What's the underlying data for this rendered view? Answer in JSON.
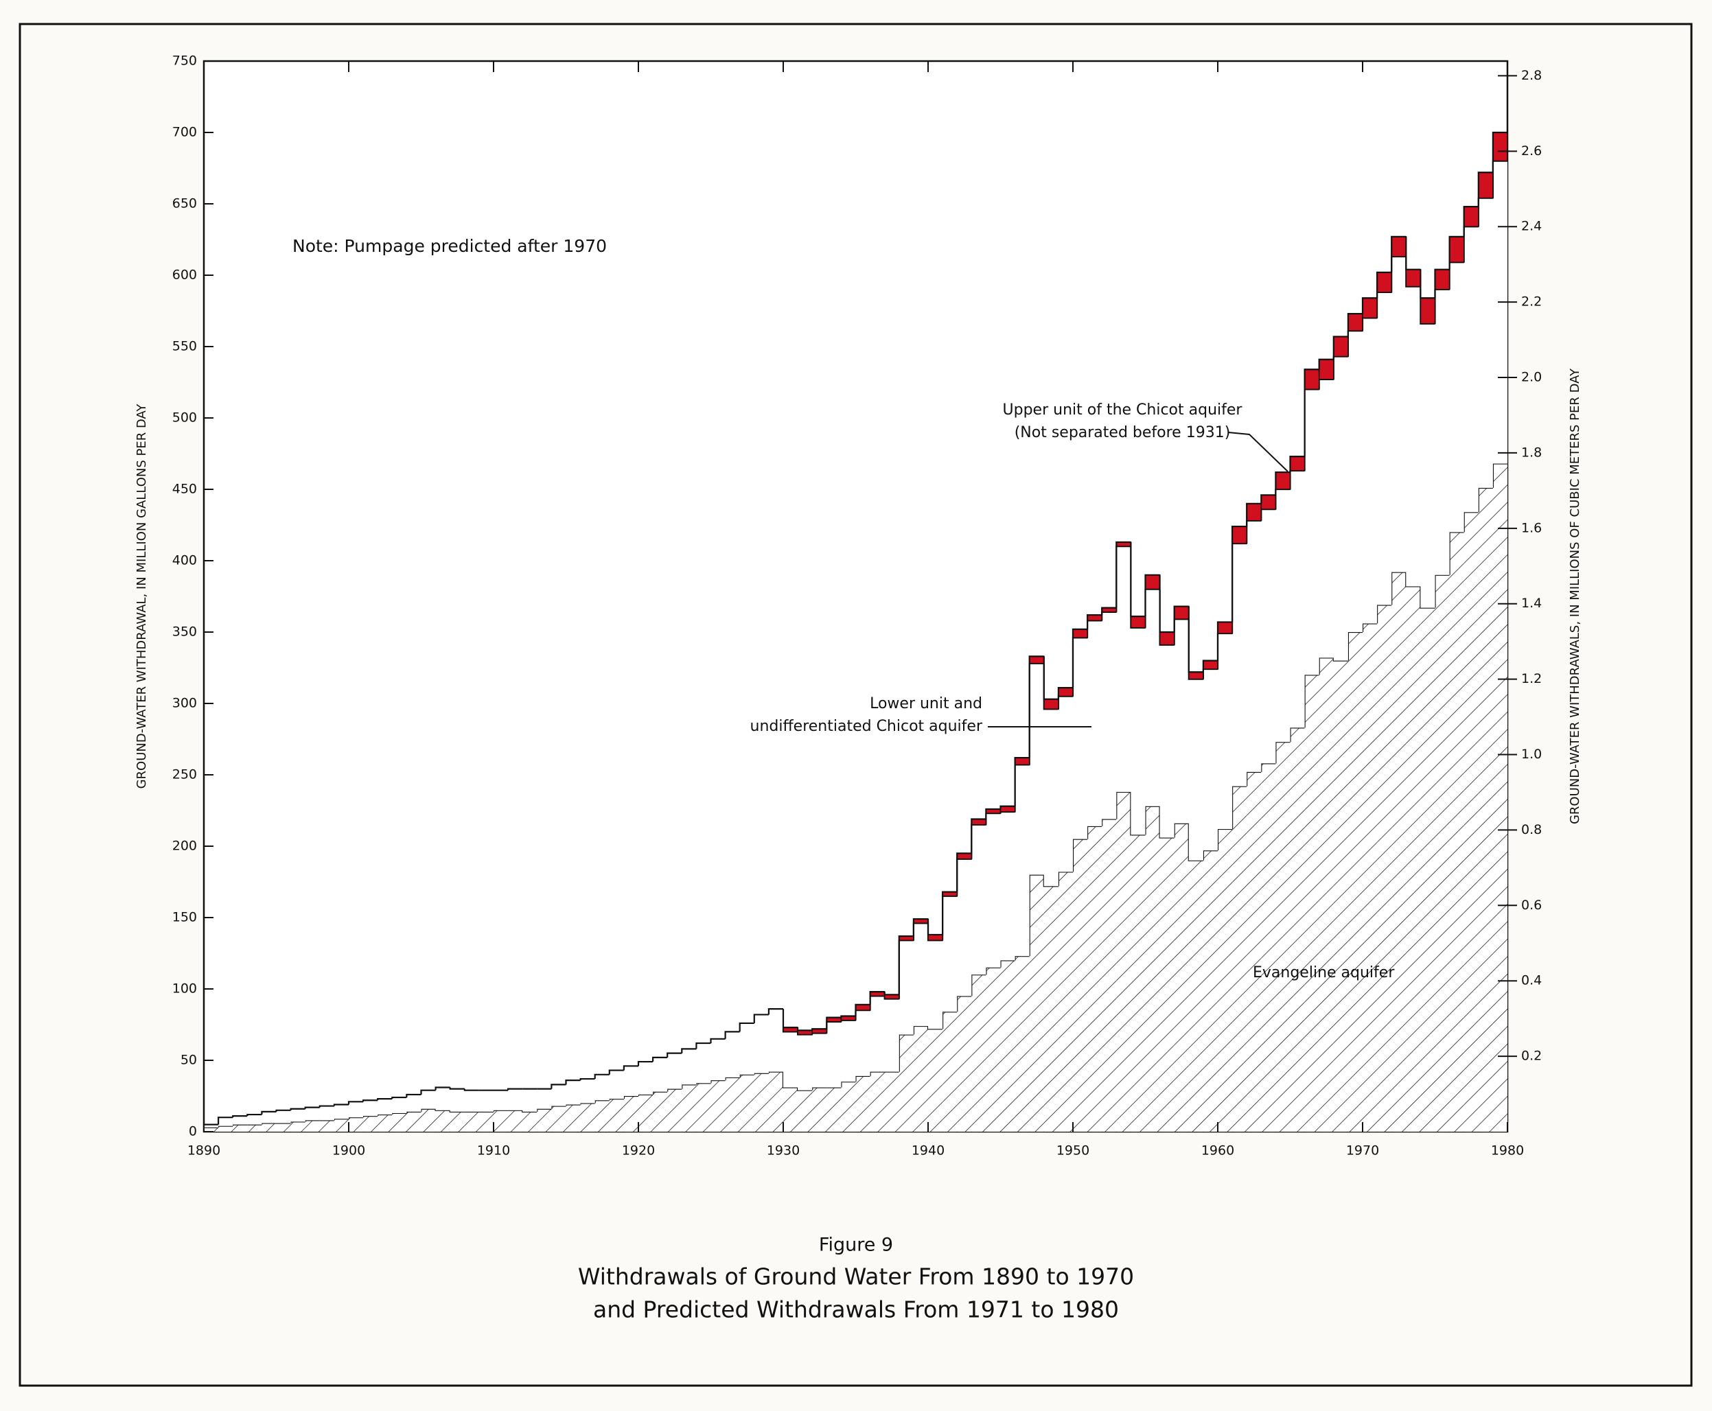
{
  "chart_data": {
    "type": "stacked-step-area",
    "figure_label": "Figure 9",
    "title": [
      "Withdrawals of Ground Water From 1890 to 1970",
      "and Predicted Withdrawals From 1971 to 1980"
    ],
    "note": "Note: Pumpage predicted after 1970",
    "y_label": "GROUND-WATER WITHDRAWAL, IN MILLION GALLONS PER DAY",
    "y2_label": "GROUND-WATER WITHDRAWALS, IN MILLIONS OF CUBIC METERS PER DAY",
    "x": [
      1890,
      1891,
      1892,
      1893,
      1894,
      1895,
      1896,
      1897,
      1898,
      1899,
      1900,
      1901,
      1902,
      1903,
      1904,
      1905,
      1906,
      1907,
      1908,
      1909,
      1910,
      1911,
      1912,
      1913,
      1914,
      1915,
      1916,
      1917,
      1918,
      1919,
      1920,
      1921,
      1922,
      1923,
      1924,
      1925,
      1926,
      1927,
      1928,
      1929,
      1930,
      1931,
      1932,
      1933,
      1934,
      1935,
      1936,
      1937,
      1938,
      1939,
      1940,
      1941,
      1942,
      1943,
      1944,
      1945,
      1946,
      1947,
      1948,
      1949,
      1950,
      1951,
      1952,
      1953,
      1954,
      1955,
      1956,
      1957,
      1958,
      1959,
      1960,
      1961,
      1962,
      1963,
      1964,
      1965,
      1966,
      1967,
      1968,
      1969,
      1970,
      1971,
      1972,
      1973,
      1974,
      1975,
      1976,
      1977,
      1978,
      1979
    ],
    "series": [
      {
        "name": [
          "Evangeline aquifer"
        ],
        "color": "hatch",
        "values": [
          3,
          4,
          5,
          5,
          6,
          6,
          7,
          8,
          8,
          9,
          10,
          11,
          12,
          13,
          14,
          16,
          15,
          14,
          14,
          14,
          15,
          15,
          14,
          16,
          18,
          19,
          20,
          22,
          23,
          25,
          26,
          28,
          30,
          33,
          34,
          36,
          38,
          40,
          41,
          42,
          31,
          29,
          31,
          31,
          35,
          39,
          42,
          42,
          68,
          74,
          72,
          84,
          95,
          110,
          115,
          120,
          123,
          180,
          172,
          182,
          205,
          214,
          219,
          238,
          208,
          228,
          206,
          216,
          190,
          197,
          212,
          242,
          252,
          258,
          273,
          283,
          320,
          332,
          330,
          350,
          356,
          369,
          392,
          382,
          367,
          390,
          420,
          434,
          451,
          468
        ]
      },
      {
        "name": [
          "Lower unit and",
          "undifferentiated Chicot aquifer"
        ],
        "color": "#ffffff",
        "values": [
          2,
          6,
          6,
          7,
          8,
          9,
          9,
          9,
          10,
          10,
          11,
          11,
          11,
          11,
          12,
          13,
          16,
          16,
          15,
          15,
          14,
          15,
          16,
          14,
          15,
          17,
          17,
          18,
          20,
          21,
          23,
          24,
          25,
          25,
          28,
          29,
          32,
          36,
          41,
          44,
          39,
          39,
          38,
          46,
          43,
          46,
          53,
          51,
          66,
          72,
          62,
          81,
          96,
          105,
          108,
          104,
          134,
          148,
          124,
          123,
          141,
          144,
          145,
          172,
          145,
          152,
          135,
          143,
          127,
          127,
          137,
          170,
          176,
          178,
          177,
          180,
          200,
          195,
          213,
          211,
          214,
          219,
          221,
          210,
          199,
          200,
          189,
          200,
          203,
          212
        ]
      },
      {
        "name": [
          "Upper unit of the Chicot aquifer",
          "(Not separated before 1931)"
        ],
        "color": "#d0101e",
        "values": [
          null,
          null,
          null,
          null,
          null,
          null,
          null,
          null,
          null,
          null,
          null,
          null,
          null,
          null,
          null,
          null,
          null,
          null,
          null,
          null,
          null,
          null,
          null,
          null,
          null,
          null,
          null,
          null,
          null,
          null,
          null,
          null,
          null,
          null,
          null,
          null,
          null,
          null,
          null,
          null,
          3,
          3,
          3,
          3,
          3,
          4,
          3,
          3,
          3,
          3,
          4,
          3,
          4,
          4,
          3,
          4,
          5,
          5,
          7,
          6,
          6,
          4,
          3,
          3,
          8,
          10,
          9,
          9,
          5,
          6,
          8,
          12,
          12,
          10,
          12,
          10,
          14,
          14,
          14,
          12,
          14,
          14,
          14,
          12,
          18,
          14,
          18,
          14,
          18,
          20
        ]
      }
    ],
    "xlim": [
      1890,
      1980
    ],
    "xticks": [
      1890,
      1900,
      1910,
      1920,
      1930,
      1940,
      1950,
      1960,
      1970,
      1980
    ],
    "ylim": [
      0,
      750
    ],
    "yticks": [
      0,
      50,
      100,
      150,
      200,
      250,
      300,
      350,
      400,
      450,
      500,
      550,
      600,
      650,
      700,
      750
    ],
    "y2lim": [
      0,
      2.839
    ],
    "y2ticks": [
      0.2,
      0.4,
      0.6,
      0.8,
      {
        "value": 1,
        "label": "1.0"
      },
      1.2,
      1.4,
      1.6,
      1.8,
      {
        "value": 2,
        "label": "2.0"
      },
      2.2,
      2.4,
      2.6,
      2.8
    ]
  }
}
